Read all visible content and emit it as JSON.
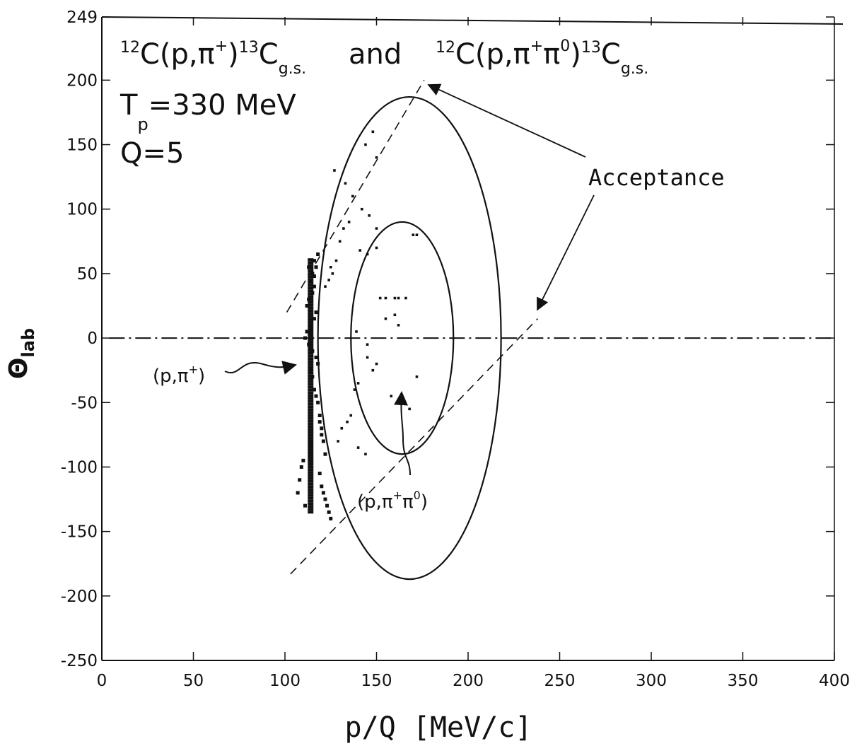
{
  "chart_data": {
    "type": "scatter",
    "title_lines": {
      "reaction_1": {
        "pre": "12",
        "main1": "C(p,π",
        "sup1": "+",
        "main2": ")",
        "pre2": "13",
        "main3": "C",
        "sub": "g.s."
      },
      "conjunction": "and",
      "reaction_2": {
        "pre": "12",
        "main1": "C(p,π",
        "sup1": "+",
        "main2": "π",
        "sup2": "0",
        "main3": ")",
        "pre2": "13",
        "main4": "C",
        "sub": "g.s."
      },
      "tp": {
        "main": "T",
        "sub": "p",
        "rest": "=330  MeV"
      },
      "q": "Q=5"
    },
    "xlabel": "p/Q  [MeV/c]",
    "ylabel": {
      "main": "Θ",
      "sub": "lab"
    },
    "xlim": [
      0,
      400
    ],
    "ylim": [
      -250,
      249
    ],
    "x_ticks": [
      "0",
      "50",
      "100",
      "150",
      "200",
      "250",
      "300",
      "350",
      "400"
    ],
    "y_ticks": [
      "249",
      "200",
      "150",
      "100",
      "50",
      "0",
      "-50",
      "-100",
      "-150",
      "-200",
      "-250"
    ],
    "x_tick_values": [
      0,
      50,
      100,
      150,
      200,
      250,
      300,
      350,
      400
    ],
    "y_tick_values": [
      249,
      200,
      150,
      100,
      50,
      0,
      -50,
      -100,
      -150,
      -200,
      -250
    ],
    "annotations": {
      "acceptance": "Acceptance",
      "p_pi": {
        "pre": "(p,π",
        "sup": "+",
        "post": ")"
      },
      "p_pi_pi0": {
        "pre": "(p,π",
        "sup1": "+",
        "mid": "π",
        "sup2": "0",
        "post": ")"
      }
    },
    "outer_acceptance": {
      "center": [
        168,
        0
      ],
      "rx": 50,
      "ry": 187
    },
    "inner_acceptance": {
      "center": [
        164,
        0
      ],
      "rx": 28,
      "ry": 90
    },
    "dashed_line_1": [
      [
        101,
        20
      ],
      [
        176,
        200
      ]
    ],
    "dashed_line_2": [
      [
        103,
        -183
      ],
      [
        238,
        15
      ]
    ],
    "dashdot_zero_line": [
      [
        4,
        0
      ],
      [
        400,
        0
      ]
    ],
    "series": [
      {
        "name": "(p,π+)",
        "x": [
          111,
          112,
          113,
          114,
          115,
          116,
          117,
          112,
          113,
          115,
          116,
          114,
          115,
          113,
          116,
          117,
          118,
          114,
          115,
          116,
          117,
          118,
          119,
          120,
          121,
          122,
          110,
          109,
          108,
          107,
          111,
          119,
          120,
          121,
          122,
          123,
          124,
          125,
          118,
          117,
          116,
          119,
          120
        ],
        "y": [
          0,
          5,
          -5,
          10,
          -10,
          15,
          20,
          25,
          30,
          35,
          40,
          45,
          50,
          55,
          60,
          -15,
          -20,
          -25,
          -30,
          -40,
          -45,
          -50,
          -60,
          -70,
          -80,
          -90,
          -95,
          -100,
          -110,
          -120,
          -130,
          -105,
          -115,
          -120,
          -125,
          -130,
          -135,
          -140,
          65,
          55,
          48,
          -65,
          -75
        ]
      },
      {
        "name": "(p,π+π0)",
        "x": [
          141,
          145,
          150,
          152,
          155,
          160,
          162,
          166,
          170,
          172,
          142,
          146,
          150,
          155,
          160,
          162,
          145,
          150,
          148,
          158,
          163,
          168,
          172,
          140,
          138,
          135,
          132,
          130,
          128,
          126,
          124,
          122,
          136,
          134,
          131,
          129,
          140,
          144,
          150,
          144,
          148,
          145,
          139,
          137,
          133,
          127,
          125
        ],
        "y": [
          68,
          65,
          70,
          31,
          31,
          31,
          31,
          31,
          80,
          80,
          100,
          95,
          85,
          15,
          18,
          10,
          -15,
          -20,
          -25,
          -45,
          -50,
          -55,
          -30,
          -35,
          -40,
          90,
          85,
          75,
          60,
          50,
          45,
          40,
          -60,
          -65,
          -70,
          -80,
          -85,
          -90,
          140,
          150,
          160,
          -5,
          5,
          110,
          120,
          130,
          55
        ]
      }
    ]
  }
}
